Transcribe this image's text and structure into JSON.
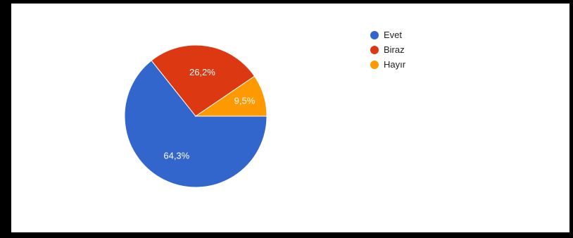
{
  "chart_data": {
    "type": "pie",
    "categories": [
      "Evet",
      "Biraz",
      "Hayır"
    ],
    "values": [
      64.3,
      26.2,
      9.5
    ],
    "labels": [
      "64,3%",
      "26,2%",
      "9,5%"
    ],
    "colors": [
      "#3366cc",
      "#dc3912",
      "#ff9900"
    ],
    "legend_position": "right"
  }
}
